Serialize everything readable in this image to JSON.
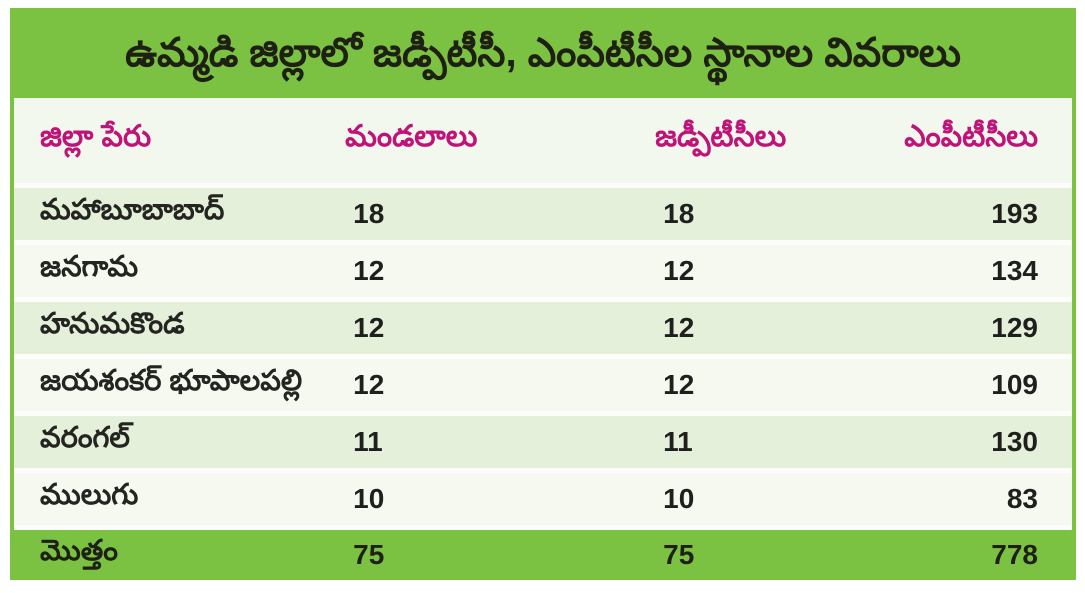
{
  "title": "ఉమ్మడి జిల్లాలో జడ్పీటీసీ, ఎంపీటీసీల స్థానాల వివరాలు",
  "colors": {
    "green": "#7CC242",
    "header_text": "#C01379",
    "row_odd": "#E5F0DA",
    "row_even": "#F5F9F0",
    "header_bg": "#F3F8EE",
    "ink": "#1F2014"
  },
  "chart_data": {
    "type": "table",
    "title": "ఉమ్మడి జిల్లాలో జడ్పీటీసీ, ఎంపీటీసీల స్థానాల వివరాలు",
    "columns": [
      "జిల్లా పేరు",
      "మండలాలు",
      "జడ్పీటీసీలు",
      "ఎంపీటీసీలు"
    ],
    "rows": [
      {
        "district": "మహాబూబాబాద్",
        "mandals": 18,
        "zptc": 18,
        "mptc": 193
      },
      {
        "district": "జనగామ",
        "mandals": 12,
        "zptc": 12,
        "mptc": 134
      },
      {
        "district": "హనుమకొండ",
        "mandals": 12,
        "zptc": 12,
        "mptc": 129
      },
      {
        "district": "జయశంకర్ భూపాలపల్లి",
        "mandals": 12,
        "zptc": 12,
        "mptc": 109
      },
      {
        "district": "వరంగల్",
        "mandals": 11,
        "zptc": 11,
        "mptc": 130
      },
      {
        "district": "ములుగు",
        "mandals": 10,
        "zptc": 10,
        "mptc": 83
      }
    ],
    "total_row": {
      "district": "మొత్తం",
      "mandals": 75,
      "zptc": 75,
      "mptc": 778
    },
    "layout": {
      "legend": false,
      "grid": false,
      "row_striping": true
    }
  }
}
